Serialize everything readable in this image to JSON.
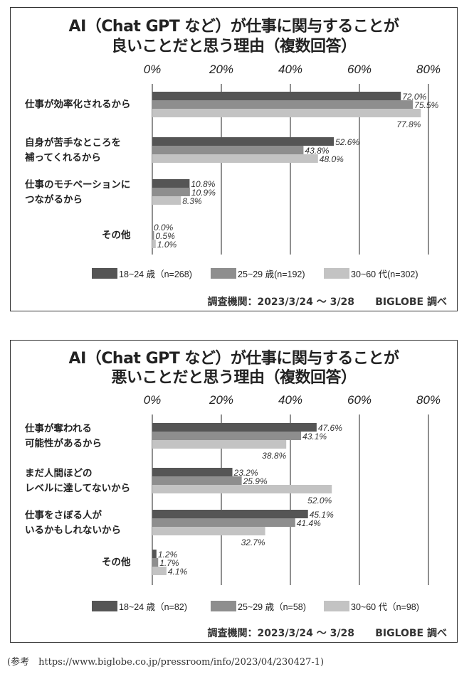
{
  "colors": {
    "s1": "#555555",
    "s2": "#8e8e8e",
    "s3": "#c3c3c3",
    "grid": "#222222"
  },
  "chart_data": [
    {
      "type": "bar",
      "orientation": "horizontal",
      "title_line1": "AI（Chat GPT など）が仕事に関与することが",
      "title_line2": "良いことだと思う理由（複数回答）",
      "xlim": [
        0,
        80
      ],
      "ticks": [
        "0%",
        "20%",
        "40%",
        "60%",
        "80%"
      ],
      "tick_values": [
        0,
        20,
        40,
        60,
        80
      ],
      "categories": [
        [
          "仕事が効率化されるから"
        ],
        [
          "自身が苦手なところを",
          "補ってくれるから"
        ],
        [
          "仕事のモチベーションに",
          "つながるから"
        ],
        [
          "その他"
        ]
      ],
      "series": [
        {
          "name": "18~24 歳（n=268)",
          "values": [
            72.0,
            52.6,
            10.8,
            0.0
          ],
          "labels": [
            "72.0%",
            "52.6%",
            "10.8%",
            "0.0%"
          ]
        },
        {
          "name": "25~29 歳(n=192)",
          "values": [
            75.5,
            43.8,
            10.9,
            0.5
          ],
          "labels": [
            "75.5%",
            "43.8%",
            "10.9%",
            "0.5%"
          ]
        },
        {
          "name": "30~60 代(n=302)",
          "values": [
            77.8,
            48.0,
            8.3,
            1.0
          ],
          "labels": [
            "77.8%",
            "48.0%",
            "8.3%",
            "1.0%"
          ]
        }
      ],
      "footer": "調査機関：2023/3/24 ～ 3/28      BIGLOBE 調べ"
    },
    {
      "type": "bar",
      "orientation": "horizontal",
      "title_line1": "AI（Chat GPT など）が仕事に関与することが",
      "title_line2": "悪いことだと思う理由（複数回答）",
      "xlim": [
        0,
        80
      ],
      "ticks": [
        "0%",
        "20%",
        "40%",
        "60%",
        "80%"
      ],
      "tick_values": [
        0,
        20,
        40,
        60,
        80
      ],
      "categories": [
        [
          "仕事が奪われる",
          "可能性があるから"
        ],
        [
          "まだ人間ほどの",
          "レベルに達してないから"
        ],
        [
          "仕事をさぼる人が",
          "いるかもしれないから"
        ],
        [
          "その他"
        ]
      ],
      "series": [
        {
          "name": "18~24 歳（n=82)",
          "values": [
            47.6,
            23.2,
            45.1,
            1.2
          ],
          "labels": [
            "47.6%",
            "23.2%",
            "45.1%",
            "1.2%"
          ]
        },
        {
          "name": "25~29 歳（n=58)",
          "values": [
            43.1,
            25.9,
            41.4,
            1.7
          ],
          "labels": [
            "43.1%",
            "25.9%",
            "41.4%",
            "1.7%"
          ]
        },
        {
          "name": "30~60 代（n=98)",
          "values": [
            38.8,
            52.0,
            32.7,
            4.1
          ],
          "labels": [
            "38.8%",
            "52.0%",
            "32.7%",
            "4.1%"
          ]
        }
      ],
      "footer": "調査機関：2023/3/24 ～ 3/28      BIGLOBE 調べ"
    }
  ],
  "reference": "(参考　https://www.biglobe.co.jp/pressroom/info/2023/04/230427-1)"
}
